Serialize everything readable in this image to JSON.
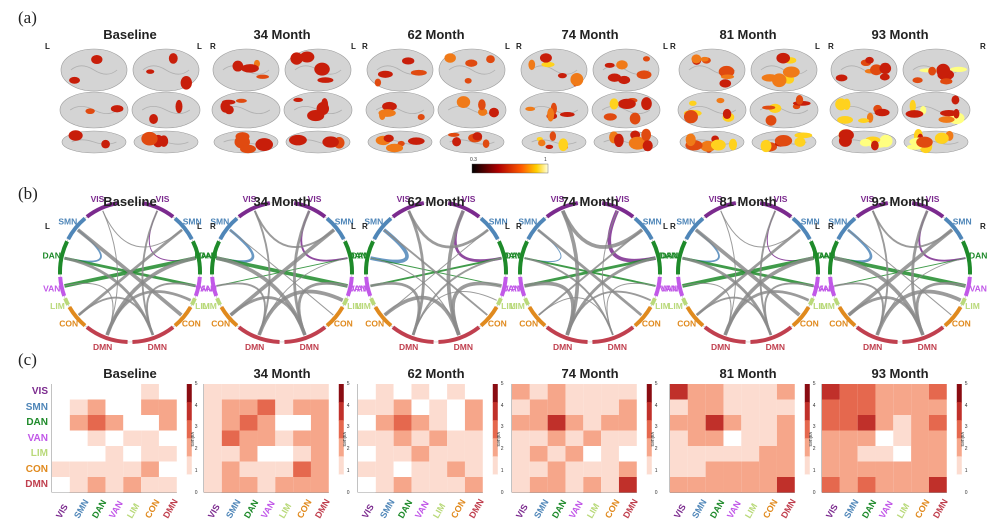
{
  "panels": {
    "a": "(a)",
    "b": "(b)",
    "c": "(c)"
  },
  "timepoints": [
    "Baseline",
    "34 Month",
    "62 Month",
    "74 Month",
    "81 Month",
    "93 Month"
  ],
  "hemi": {
    "left": "L",
    "right": "R"
  },
  "brain_colorbar": {
    "min": "0.3",
    "max": "1"
  },
  "networks": [
    "VIS",
    "SMN",
    "DAN",
    "VAN",
    "LIM",
    "CON",
    "DMN"
  ],
  "network_colors": {
    "VIS": "#7b2a8e",
    "SMN": "#4f86b8",
    "DAN": "#1e8a2a",
    "VAN": "#c158e8",
    "LIM": "#b9d97a",
    "CON": "#e08a1e",
    "DMN": "#c0404f"
  },
  "matrix_colorbar": {
    "ticks": [
      "5",
      "4",
      "3",
      "2",
      "1",
      "0"
    ],
    "label": "values"
  },
  "matrices": [
    [
      [
        0,
        0,
        0,
        0,
        0,
        1,
        0
      ],
      [
        0,
        1,
        2,
        0,
        0,
        2,
        2
      ],
      [
        0,
        2,
        3,
        2,
        0,
        0,
        2
      ],
      [
        0,
        0,
        1,
        0,
        1,
        1,
        0
      ],
      [
        0,
        0,
        0,
        1,
        0,
        1,
        1
      ],
      [
        1,
        1,
        1,
        1,
        1,
        2,
        0
      ],
      [
        0,
        1,
        2,
        1,
        2,
        1,
        1
      ]
    ],
    [
      [
        1,
        1,
        1,
        1,
        1,
        1,
        1
      ],
      [
        1,
        2,
        2,
        3,
        1,
        2,
        2
      ],
      [
        1,
        2,
        3,
        2,
        0,
        0,
        2
      ],
      [
        1,
        3,
        2,
        2,
        1,
        2,
        2
      ],
      [
        1,
        1,
        2,
        0,
        0,
        1,
        2
      ],
      [
        1,
        2,
        1,
        1,
        1,
        3,
        2
      ],
      [
        1,
        2,
        2,
        1,
        2,
        2,
        2
      ]
    ],
    [
      [
        0,
        1,
        0,
        1,
        0,
        1,
        0
      ],
      [
        1,
        1,
        2,
        0,
        1,
        0,
        2
      ],
      [
        0,
        2,
        3,
        2,
        1,
        0,
        2
      ],
      [
        1,
        1,
        2,
        1,
        2,
        1,
        1
      ],
      [
        0,
        1,
        1,
        2,
        1,
        1,
        1
      ],
      [
        1,
        1,
        0,
        1,
        1,
        2,
        1
      ],
      [
        0,
        1,
        2,
        1,
        1,
        1,
        2
      ]
    ],
    [
      [
        2,
        1,
        2,
        1,
        1,
        1,
        1
      ],
      [
        1,
        2,
        2,
        1,
        1,
        1,
        2
      ],
      [
        2,
        2,
        4,
        2,
        1,
        2,
        2
      ],
      [
        1,
        1,
        2,
        1,
        2,
        1,
        1
      ],
      [
        1,
        2,
        1,
        2,
        0,
        1,
        0
      ],
      [
        1,
        1,
        2,
        1,
        1,
        1,
        2
      ],
      [
        1,
        2,
        2,
        1,
        2,
        1,
        4
      ]
    ],
    [
      [
        4,
        2,
        2,
        1,
        1,
        1,
        2
      ],
      [
        1,
        2,
        2,
        1,
        1,
        1,
        1
      ],
      [
        2,
        2,
        4,
        2,
        1,
        1,
        2
      ],
      [
        1,
        2,
        2,
        0,
        1,
        1,
        2
      ],
      [
        1,
        1,
        1,
        1,
        1,
        2,
        2
      ],
      [
        1,
        1,
        2,
        2,
        2,
        2,
        2
      ],
      [
        2,
        2,
        2,
        2,
        2,
        2,
        4
      ]
    ],
    [
      [
        4,
        3,
        3,
        2,
        2,
        2,
        3
      ],
      [
        3,
        3,
        3,
        2,
        2,
        2,
        2
      ],
      [
        3,
        3,
        4,
        2,
        1,
        2,
        3
      ],
      [
        2,
        2,
        2,
        0,
        1,
        2,
        2
      ],
      [
        2,
        2,
        1,
        1,
        0,
        2,
        2
      ],
      [
        2,
        2,
        2,
        2,
        2,
        2,
        2
      ],
      [
        3,
        2,
        3,
        2,
        2,
        2,
        4
      ]
    ]
  ]
}
